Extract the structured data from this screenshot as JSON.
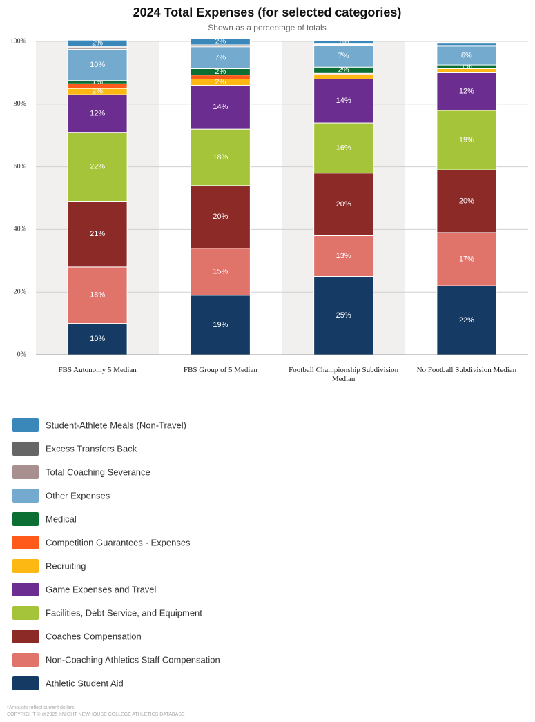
{
  "chart_data": {
    "type": "stacked_bar_percent",
    "title": "2024 Total Expenses (for selected categories)",
    "subtitle": "Shown as a percentage of totals",
    "categories": [
      "FBS Autonomy 5 Median",
      "FBS Group of 5 Median",
      "Football Championship Subdivision Median",
      "No Football Subdivision Median"
    ],
    "ylim": [
      0,
      100
    ],
    "yticks": [
      {
        "value": 0,
        "label": "0%"
      },
      {
        "value": 20,
        "label": "20%"
      },
      {
        "value": 40,
        "label": "40%"
      },
      {
        "value": 60,
        "label": "60%"
      },
      {
        "value": 80,
        "label": "80%"
      },
      {
        "value": 100,
        "label": "100%"
      }
    ],
    "grid": true,
    "series": [
      {
        "name": "Student-Athlete Meals (Non-Travel)",
        "color": "#3a87b9",
        "values": [
          2,
          2,
          1,
          0.7
        ],
        "value_labels": [
          "2%",
          "2%",
          "1%",
          null
        ]
      },
      {
        "name": "Excess Transfers Back",
        "color": "#666666",
        "values": [
          0.3,
          0.3,
          0.2,
          0.1
        ],
        "value_labels": [
          null,
          null,
          null,
          null
        ]
      },
      {
        "name": "Total Coaching Severance",
        "color": "#a89090",
        "values": [
          0.6,
          0.3,
          0.2,
          0.1
        ],
        "value_labels": [
          null,
          null,
          null,
          null
        ]
      },
      {
        "name": "Other Expenses",
        "color": "#74aacd",
        "values": [
          10,
          7,
          7,
          6
        ],
        "value_labels": [
          "10%",
          "7%",
          "7%",
          "6%"
        ]
      },
      {
        "name": "Medical",
        "color": "#0b6e33",
        "values": [
          1,
          2,
          2,
          1
        ],
        "value_labels": [
          "1%",
          "2%",
          "2%",
          "1%"
        ]
      },
      {
        "name": "Competition Guarantees - Expenses",
        "color": "#ff5a1a",
        "values": [
          1.5,
          1.3,
          0.3,
          0.2
        ],
        "value_labels": [
          null,
          null,
          null,
          null
        ]
      },
      {
        "name": "Recruiting",
        "color": "#fdb813",
        "values": [
          2,
          2,
          1.5,
          1.3
        ],
        "value_labels": [
          "2%",
          "2%",
          null,
          null
        ]
      },
      {
        "name": "Game Expenses and Travel",
        "color": "#6b2d8f",
        "values": [
          12,
          14,
          14,
          12
        ],
        "value_labels": [
          "12%",
          "14%",
          "14%",
          "12%"
        ]
      },
      {
        "name": "Facilities, Debt Service, and Equipment",
        "color": "#a6c43a",
        "values": [
          22,
          18,
          16,
          19
        ],
        "value_labels": [
          "22%",
          "18%",
          "16%",
          "19%"
        ]
      },
      {
        "name": "Coaches Compensation",
        "color": "#8c2a28",
        "values": [
          21,
          20,
          20,
          20
        ],
        "value_labels": [
          "21%",
          "20%",
          "20%",
          "20%"
        ]
      },
      {
        "name": "Non-Coaching Athletics Staff Compensation",
        "color": "#e0736a",
        "values": [
          18,
          15,
          13,
          17
        ],
        "value_labels": [
          "18%",
          "15%",
          "13%",
          "17%"
        ]
      },
      {
        "name": "Athletic Student Aid",
        "color": "#153a63",
        "values": [
          10,
          19,
          25,
          22
        ],
        "value_labels": [
          "10%",
          "19%",
          "25%",
          "22%"
        ]
      }
    ],
    "notes": [
      "*Amounts reflect current dollars.",
      "COPYRIGHT © @2025 KNIGHT-NEWHOUSE COLLEGE ATHLETICS DATABASE"
    ]
  }
}
